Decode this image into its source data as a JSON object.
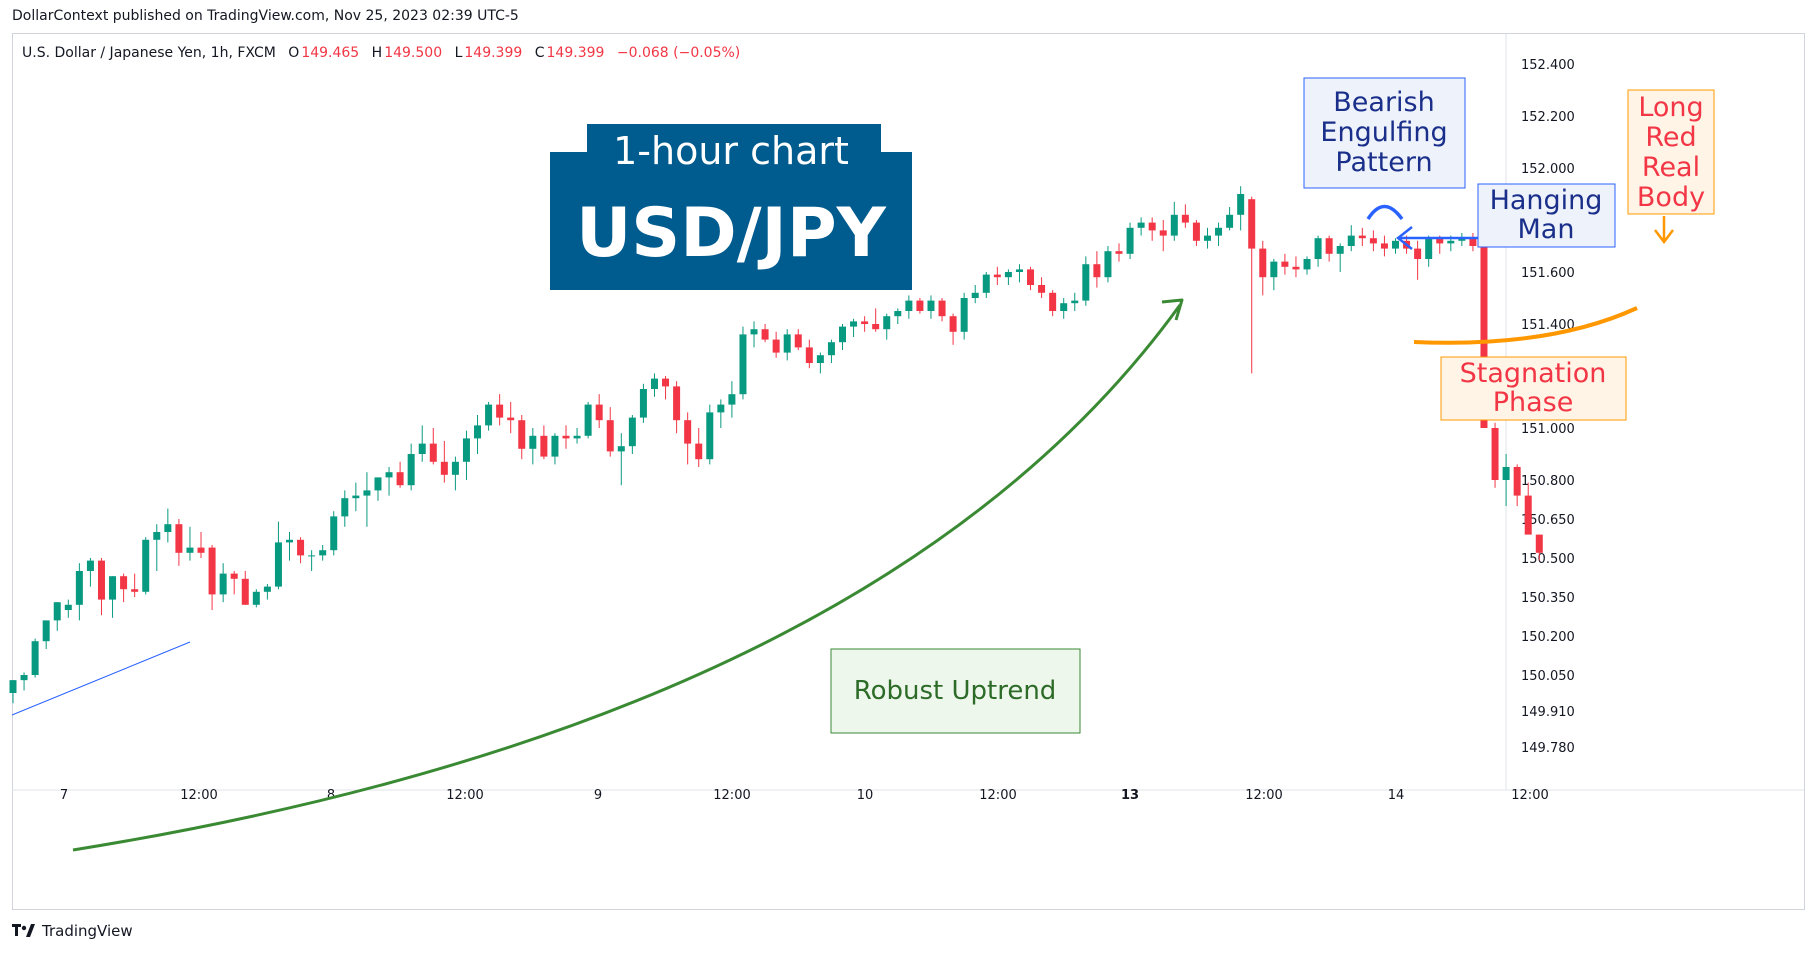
{
  "header": {
    "published": "DollarContext published on TradingView.com, Nov 25, 2023 02:39 UTC-5"
  },
  "legend": {
    "symbol": "U.S. Dollar / Japanese Yen, 1h, FXCM",
    "o_label": "O",
    "o_value": "149.465",
    "h_label": "H",
    "h_value": "149.500",
    "l_label": "L",
    "l_value": "149.399",
    "c_label": "C",
    "c_value": "149.399",
    "change": "−0.068 (−0.05%)"
  },
  "footer": {
    "brand": "TradingView"
  },
  "colors": {
    "up": "#089981",
    "down": "#f23645",
    "banner": "#005b8e",
    "annotation_blue": "#2962ff",
    "uptrend": "#3a8a34",
    "stagnation": "#ff9800"
  },
  "chart_data": {
    "type": "candlestick",
    "y_ticks": [
      "152.400",
      "152.200",
      "152.000",
      "151.800",
      "151.600",
      "151.400",
      "151.200",
      "151.000",
      "150.800",
      "150.650",
      "150.500",
      "150.350",
      "150.200",
      "150.050",
      "149.910",
      "149.780"
    ],
    "x_ticks": [
      "7",
      "12:00",
      "8",
      "12:00",
      "9",
      "12:00",
      "10",
      "12:00",
      "13",
      "12:00",
      "14",
      "12:00"
    ],
    "candles": [
      [
        149.98,
        150.03,
        149.94,
        150.03
      ],
      [
        150.03,
        150.06,
        149.99,
        150.05
      ],
      [
        150.05,
        150.19,
        150.04,
        150.18
      ],
      [
        150.18,
        150.26,
        150.15,
        150.26
      ],
      [
        150.26,
        150.33,
        150.22,
        150.33
      ],
      [
        150.3,
        150.34,
        150.27,
        150.32
      ],
      [
        150.32,
        150.48,
        150.26,
        150.45
      ],
      [
        150.45,
        150.5,
        150.39,
        150.49
      ],
      [
        150.49,
        150.5,
        150.28,
        150.34
      ],
      [
        150.34,
        150.43,
        150.27,
        150.43
      ],
      [
        150.43,
        150.44,
        150.33,
        150.38
      ],
      [
        150.38,
        150.44,
        150.35,
        150.37
      ],
      [
        150.37,
        150.58,
        150.36,
        150.57
      ],
      [
        150.57,
        150.63,
        150.45,
        150.6
      ],
      [
        150.6,
        150.69,
        150.56,
        150.63
      ],
      [
        150.63,
        150.65,
        150.47,
        150.52
      ],
      [
        150.52,
        150.62,
        150.49,
        150.54
      ],
      [
        150.54,
        150.6,
        150.5,
        150.52
      ],
      [
        150.54,
        150.55,
        150.3,
        150.36
      ],
      [
        150.36,
        150.48,
        150.33,
        150.44
      ],
      [
        150.44,
        150.45,
        150.36,
        150.42
      ],
      [
        150.42,
        150.45,
        150.32,
        150.32
      ],
      [
        150.32,
        150.38,
        150.31,
        150.37
      ],
      [
        150.37,
        150.4,
        150.34,
        150.39
      ],
      [
        150.39,
        150.64,
        150.38,
        150.56
      ],
      [
        150.56,
        150.6,
        150.49,
        150.57
      ],
      [
        150.57,
        150.58,
        150.48,
        150.51
      ],
      [
        150.51,
        150.53,
        150.45,
        150.51
      ],
      [
        150.51,
        150.55,
        150.49,
        150.53
      ],
      [
        150.53,
        150.68,
        150.51,
        150.66
      ],
      [
        150.66,
        150.76,
        150.62,
        150.73
      ],
      [
        150.73,
        150.79,
        150.68,
        150.74
      ],
      [
        150.74,
        150.83,
        150.62,
        150.76
      ],
      [
        150.76,
        150.81,
        150.72,
        150.81
      ],
      [
        150.81,
        150.85,
        150.74,
        150.83
      ],
      [
        150.83,
        150.87,
        150.77,
        150.78
      ],
      [
        150.78,
        150.94,
        150.76,
        150.9
      ],
      [
        150.9,
        151.01,
        150.87,
        150.94
      ],
      [
        150.94,
        151.0,
        150.86,
        150.87
      ],
      [
        150.87,
        150.95,
        150.79,
        150.82
      ],
      [
        150.82,
        150.89,
        150.76,
        150.87
      ],
      [
        150.87,
        150.99,
        150.8,
        150.96
      ],
      [
        150.96,
        151.05,
        150.9,
        151.01
      ],
      [
        151.01,
        151.1,
        150.99,
        151.09
      ],
      [
        151.09,
        151.13,
        151.01,
        151.04
      ],
      [
        151.04,
        151.1,
        150.98,
        151.03
      ],
      [
        151.03,
        151.05,
        150.88,
        150.92
      ],
      [
        150.92,
        151.0,
        150.86,
        150.97
      ],
      [
        150.97,
        151.01,
        150.88,
        150.89
      ],
      [
        150.89,
        150.98,
        150.86,
        150.97
      ],
      [
        150.97,
        151.01,
        150.92,
        150.96
      ],
      [
        150.96,
        151.0,
        150.94,
        150.97
      ],
      [
        150.97,
        151.1,
        150.96,
        151.09
      ],
      [
        151.09,
        151.13,
        151.0,
        151.03
      ],
      [
        151.03,
        151.08,
        150.89,
        150.91
      ],
      [
        150.91,
        150.98,
        150.78,
        150.93
      ],
      [
        150.93,
        151.05,
        150.9,
        151.04
      ],
      [
        151.04,
        151.17,
        151.02,
        151.15
      ],
      [
        151.15,
        151.21,
        151.12,
        151.19
      ],
      [
        151.19,
        151.2,
        151.11,
        151.16
      ],
      [
        151.16,
        151.18,
        150.98,
        151.03
      ],
      [
        151.03,
        151.06,
        150.86,
        150.94
      ],
      [
        150.94,
        151.0,
        150.85,
        150.88
      ],
      [
        150.88,
        151.09,
        150.86,
        151.06
      ],
      [
        151.06,
        151.11,
        151.0,
        151.09
      ],
      [
        151.09,
        151.18,
        151.04,
        151.13
      ],
      [
        151.13,
        151.39,
        151.11,
        151.36
      ],
      [
        151.36,
        151.41,
        151.31,
        151.38
      ],
      [
        151.38,
        151.4,
        151.33,
        151.34
      ],
      [
        151.34,
        151.37,
        151.27,
        151.29
      ],
      [
        151.29,
        151.38,
        151.26,
        151.36
      ],
      [
        151.36,
        151.38,
        151.3,
        151.31
      ],
      [
        151.31,
        151.34,
        151.23,
        151.25
      ],
      [
        151.25,
        151.29,
        151.21,
        151.28
      ],
      [
        151.28,
        151.34,
        151.25,
        151.33
      ],
      [
        151.33,
        151.4,
        151.3,
        151.39
      ],
      [
        151.39,
        151.42,
        151.35,
        151.41
      ],
      [
        151.41,
        151.43,
        151.37,
        151.4
      ],
      [
        151.4,
        151.46,
        151.37,
        151.38
      ],
      [
        151.38,
        151.44,
        151.34,
        151.43
      ],
      [
        151.43,
        151.46,
        151.4,
        151.45
      ],
      [
        151.45,
        151.51,
        151.42,
        151.49
      ],
      [
        151.49,
        151.5,
        151.44,
        151.45
      ],
      [
        151.45,
        151.51,
        151.42,
        151.49
      ],
      [
        151.49,
        151.5,
        151.41,
        151.43
      ],
      [
        151.43,
        151.44,
        151.32,
        151.37
      ],
      [
        151.37,
        151.52,
        151.34,
        151.5
      ],
      [
        151.5,
        151.55,
        151.48,
        151.52
      ],
      [
        151.52,
        151.6,
        151.5,
        151.59
      ],
      [
        151.59,
        151.62,
        151.55,
        151.58
      ],
      [
        151.58,
        151.61,
        151.55,
        151.6
      ],
      [
        151.6,
        151.63,
        151.56,
        151.61
      ],
      [
        151.61,
        151.62,
        151.53,
        151.55
      ],
      [
        151.55,
        151.58,
        151.5,
        151.52
      ],
      [
        151.52,
        151.53,
        151.43,
        151.45
      ],
      [
        151.45,
        151.5,
        151.42,
        151.48
      ],
      [
        151.48,
        151.52,
        151.45,
        151.49
      ],
      [
        151.49,
        151.66,
        151.47,
        151.63
      ],
      [
        151.63,
        151.68,
        151.54,
        151.58
      ],
      [
        151.58,
        151.7,
        151.56,
        151.68
      ],
      [
        151.68,
        151.71,
        151.64,
        151.67
      ],
      [
        151.67,
        151.79,
        151.65,
        151.77
      ],
      [
        151.77,
        151.81,
        151.74,
        151.79
      ],
      [
        151.79,
        151.81,
        151.72,
        151.76
      ],
      [
        151.76,
        151.8,
        151.68,
        151.74
      ],
      [
        151.74,
        151.87,
        151.72,
        151.82
      ],
      [
        151.82,
        151.86,
        151.77,
        151.79
      ],
      [
        151.79,
        151.8,
        151.7,
        151.72
      ],
      [
        151.72,
        151.77,
        151.69,
        151.74
      ],
      [
        151.74,
        151.79,
        151.7,
        151.77
      ],
      [
        151.77,
        151.85,
        151.76,
        151.82
      ],
      [
        151.82,
        151.93,
        151.76,
        151.9
      ],
      [
        151.88,
        151.89,
        151.21,
        151.69
      ],
      [
        151.69,
        151.72,
        151.51,
        151.58
      ],
      [
        151.58,
        151.65,
        151.53,
        151.64
      ],
      [
        151.64,
        151.67,
        151.59,
        151.62
      ],
      [
        151.62,
        151.66,
        151.58,
        151.61
      ],
      [
        151.61,
        151.66,
        151.59,
        151.65
      ],
      [
        151.65,
        151.74,
        151.62,
        151.73
      ],
      [
        151.73,
        151.74,
        151.64,
        151.67
      ],
      [
        151.67,
        151.71,
        151.6,
        151.7
      ],
      [
        151.7,
        151.78,
        151.68,
        151.74
      ],
      [
        151.74,
        151.77,
        151.7,
        151.73
      ],
      [
        151.73,
        151.76,
        151.68,
        151.71
      ],
      [
        151.71,
        151.74,
        151.66,
        151.69
      ],
      [
        151.69,
        151.73,
        151.67,
        151.72
      ],
      [
        151.72,
        151.74,
        151.67,
        151.69
      ],
      [
        151.69,
        151.72,
        151.57,
        151.65
      ],
      [
        151.65,
        151.74,
        151.62,
        151.73
      ],
      [
        151.73,
        151.74,
        151.67,
        151.71
      ],
      [
        151.71,
        151.74,
        151.68,
        151.72
      ],
      [
        151.72,
        151.75,
        151.7,
        151.73
      ],
      [
        151.73,
        151.75,
        151.68,
        151.7
      ],
      [
        151.7,
        151.8,
        151.0,
        151.0
      ],
      [
        151.0,
        151.02,
        150.77,
        150.8
      ],
      [
        150.8,
        150.9,
        150.7,
        150.85
      ],
      [
        150.85,
        150.86,
        150.7,
        150.74
      ],
      [
        150.74,
        150.79,
        150.6,
        150.59
      ],
      [
        150.59,
        150.59,
        150.49,
        150.52
      ]
    ],
    "annotations": {
      "banner_line1": "1-hour chart",
      "banner_line2": "USD/JPY",
      "robust_uptrend": "Robust Uptrend",
      "bearish_engulfing": [
        "Bearish",
        "Engulfing",
        "Pattern"
      ],
      "hanging_man": [
        "Hanging",
        "Man"
      ],
      "long_red_real_body": [
        "Long",
        "Red",
        "Real",
        "Body"
      ],
      "stagnation_phase": [
        "Stagnation",
        "Phase"
      ]
    }
  }
}
